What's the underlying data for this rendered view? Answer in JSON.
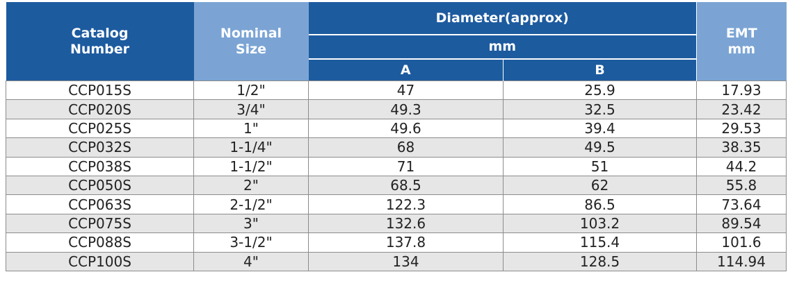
{
  "table": {
    "headers": {
      "catalog": "Catalog\nNumber",
      "nominal": "Nominal\nSize",
      "diameter": "Diameter(approx)",
      "diameter_unit": "mm",
      "col_a": "A",
      "col_b": "B",
      "emt": "EMT\nmm"
    },
    "colors": {
      "header_dark": "#1d5b9f",
      "header_light": "#7ba4d4",
      "row_alt": "#e6e6e6"
    },
    "rows": [
      {
        "catalog": "CCP015S",
        "nominal": "1/2\"",
        "a": "47",
        "b": "25.9",
        "emt": "17.93"
      },
      {
        "catalog": "CCP020S",
        "nominal": "3/4\"",
        "a": "49.3",
        "b": "32.5",
        "emt": "23.42"
      },
      {
        "catalog": "CCP025S",
        "nominal": "1\"",
        "a": "49.6",
        "b": "39.4",
        "emt": "29.53"
      },
      {
        "catalog": "CCP032S",
        "nominal": "1-1/4\"",
        "a": "68",
        "b": "49.5",
        "emt": "38.35"
      },
      {
        "catalog": "CCP038S",
        "nominal": "1-1/2\"",
        "a": "71",
        "b": "51",
        "emt": "44.2"
      },
      {
        "catalog": "CCP050S",
        "nominal": "2\"",
        "a": "68.5",
        "b": "62",
        "emt": "55.8"
      },
      {
        "catalog": "CCP063S",
        "nominal": "2-1/2\"",
        "a": "122.3",
        "b": "86.5",
        "emt": "73.64"
      },
      {
        "catalog": "CCP075S",
        "nominal": "3\"",
        "a": "132.6",
        "b": "103.2",
        "emt": "89.54"
      },
      {
        "catalog": "CCP088S",
        "nominal": "3-1/2\"",
        "a": "137.8",
        "b": "115.4",
        "emt": "101.6"
      },
      {
        "catalog": "CCP100S",
        "nominal": "4\"",
        "a": "134",
        "b": "128.5",
        "emt": "114.94"
      }
    ]
  }
}
